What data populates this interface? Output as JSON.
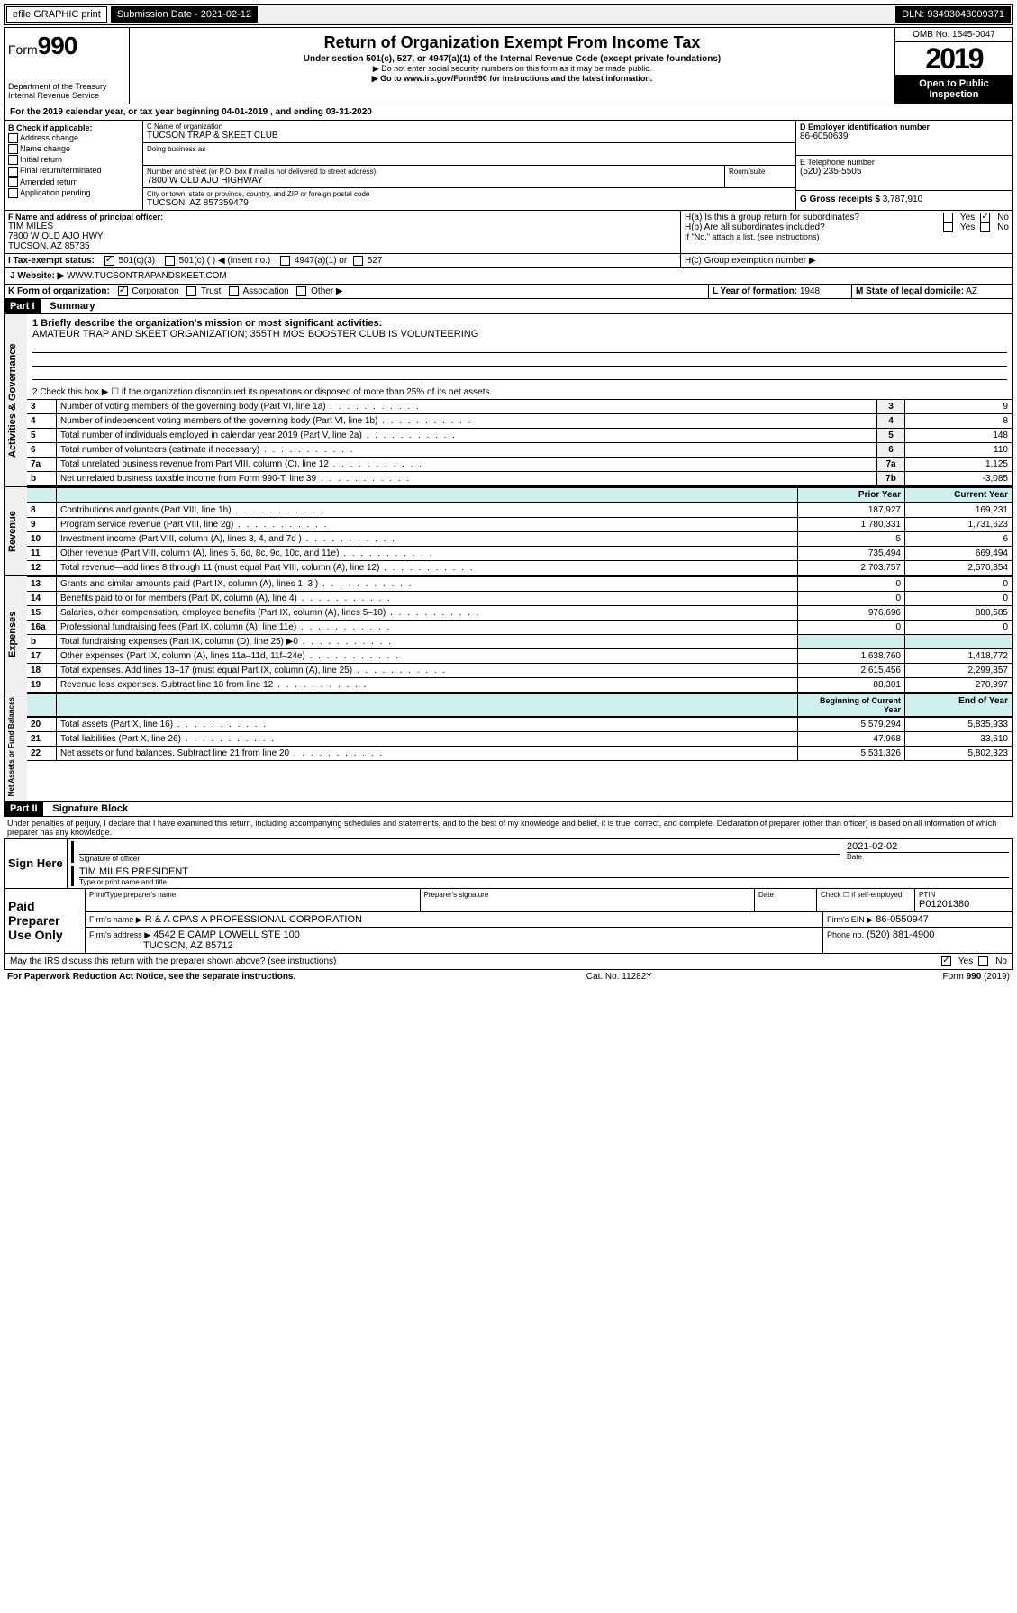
{
  "topbar": {
    "efile": "efile GRAPHIC print",
    "subdate_label": "Submission Date - 2021-02-12",
    "dln": "DLN: 93493043009371"
  },
  "header": {
    "form_prefix": "Form",
    "form_number": "990",
    "dept": "Department of the Treasury\nInternal Revenue Service",
    "title": "Return of Organization Exempt From Income Tax",
    "subtitle": "Under section 501(c), 527, or 4947(a)(1) of the Internal Revenue Code (except private foundations)",
    "warn": "▶ Do not enter social security numbers on this form as it may be made public.",
    "goto": "▶ Go to www.irs.gov/Form990 for instructions and the latest information.",
    "omb": "OMB No. 1545-0047",
    "year": "2019",
    "open": "Open to Public Inspection"
  },
  "lineA": "For the 2019 calendar year, or tax year beginning 04-01-2019  , and ending 03-31-2020",
  "boxB": {
    "label": "B Check if applicable:",
    "items": [
      "Address change",
      "Name change",
      "Initial return",
      "Final return/terminated",
      "Amended return",
      "Application pending"
    ]
  },
  "boxC": {
    "name_label": "C Name of organization",
    "name": "TUCSON TRAP & SKEET CLUB",
    "dba_label": "Doing business as",
    "addr_label": "Number and street (or P.O. box if mail is not delivered to street address)",
    "room_label": "Room/suite",
    "addr": "7800 W OLD AJO HIGHWAY",
    "city_label": "City or town, state or province, country, and ZIP or foreign postal code",
    "city": "TUCSON, AZ  857359479"
  },
  "boxD": {
    "label": "D Employer identification number",
    "val": "86-6050639"
  },
  "boxE": {
    "label": "E Telephone number",
    "val": "(520) 235-5505"
  },
  "boxG": {
    "label": "G Gross receipts $",
    "val": "3,787,910"
  },
  "boxF": {
    "label": "F Name and address of principal officer:",
    "name": "TIM MILES",
    "addr1": "7800 W OLD AJO HWY",
    "addr2": "TUCSON, AZ  85735"
  },
  "boxH": {
    "ha": "H(a)  Is this a group return for subordinates?",
    "hb": "H(b)  Are all subordinates included?",
    "hb_note": "If \"No,\" attach a list. (see instructions)",
    "hc": "H(c)  Group exemption number ▶"
  },
  "boxI": {
    "label": "I  Tax-exempt status:",
    "opts": [
      "501(c)(3)",
      "501(c) (  ) ◀ (insert no.)",
      "4947(a)(1) or",
      "527"
    ]
  },
  "boxJ": {
    "label": "J  Website: ▶",
    "val": "WWW.TUCSONTRAPANDSKEET.COM"
  },
  "boxK": {
    "label": "K Form of organization:",
    "opts": [
      "Corporation",
      "Trust",
      "Association",
      "Other ▶"
    ]
  },
  "boxL": {
    "label": "L Year of formation:",
    "val": "1948"
  },
  "boxM": {
    "label": "M State of legal domicile:",
    "val": "AZ"
  },
  "part1": {
    "header": "Part I",
    "title": "Summary",
    "l1_label": "1  Briefly describe the organization's mission or most significant activities:",
    "l1_text": "AMATEUR TRAP AND SKEET ORGANIZATION; 355TH MOS BOOSTER CLUB IS VOLUNTEERING",
    "l2": "2  Check this box ▶ ☐  if the organization discontinued its operations or disposed of more than 25% of its net assets.",
    "rows_ag": [
      {
        "n": "3",
        "t": "Number of voting members of the governing body (Part VI, line 1a)",
        "box": "3",
        "v": "9"
      },
      {
        "n": "4",
        "t": "Number of independent voting members of the governing body (Part VI, line 1b)",
        "box": "4",
        "v": "8"
      },
      {
        "n": "5",
        "t": "Total number of individuals employed in calendar year 2019 (Part V, line 2a)",
        "box": "5",
        "v": "148"
      },
      {
        "n": "6",
        "t": "Total number of volunteers (estimate if necessary)",
        "box": "6",
        "v": "110"
      },
      {
        "n": "7a",
        "t": "Total unrelated business revenue from Part VIII, column (C), line 12",
        "box": "7a",
        "v": "1,125"
      },
      {
        "n": "b",
        "t": "Net unrelated business taxable income from Form 990-T, line 39",
        "box": "7b",
        "v": "-3,085"
      }
    ],
    "col_prior": "Prior Year",
    "col_curr": "Current Year",
    "rev_rows": [
      {
        "n": "8",
        "t": "Contributions and grants (Part VIII, line 1h)",
        "p": "187,927",
        "c": "169,231"
      },
      {
        "n": "9",
        "t": "Program service revenue (Part VIII, line 2g)",
        "p": "1,780,331",
        "c": "1,731,623"
      },
      {
        "n": "10",
        "t": "Investment income (Part VIII, column (A), lines 3, 4, and 7d )",
        "p": "5",
        "c": "6"
      },
      {
        "n": "11",
        "t": "Other revenue (Part VIII, column (A), lines 5, 6d, 8c, 9c, 10c, and 11e)",
        "p": "735,494",
        "c": "669,494"
      },
      {
        "n": "12",
        "t": "Total revenue—add lines 8 through 11 (must equal Part VIII, column (A), line 12)",
        "p": "2,703,757",
        "c": "2,570,354"
      }
    ],
    "exp_rows": [
      {
        "n": "13",
        "t": "Grants and similar amounts paid (Part IX, column (A), lines 1–3 )",
        "p": "0",
        "c": "0"
      },
      {
        "n": "14",
        "t": "Benefits paid to or for members (Part IX, column (A), line 4)",
        "p": "0",
        "c": "0"
      },
      {
        "n": "15",
        "t": "Salaries, other compensation, employee benefits (Part IX, column (A), lines 5–10)",
        "p": "976,696",
        "c": "880,585"
      },
      {
        "n": "16a",
        "t": "Professional fundraising fees (Part IX, column (A), line 11e)",
        "p": "0",
        "c": "0"
      },
      {
        "n": "b",
        "t": "Total fundraising expenses (Part IX, column (D), line 25) ▶0",
        "p": "",
        "c": ""
      },
      {
        "n": "17",
        "t": "Other expenses (Part IX, column (A), lines 11a–11d, 11f–24e)",
        "p": "1,638,760",
        "c": "1,418,772"
      },
      {
        "n": "18",
        "t": "Total expenses. Add lines 13–17 (must equal Part IX, column (A), line 25)",
        "p": "2,615,456",
        "c": "2,299,357"
      },
      {
        "n": "19",
        "t": "Revenue less expenses. Subtract line 18 from line 12",
        "p": "88,301",
        "c": "270,997"
      }
    ],
    "col_boy": "Beginning of Current Year",
    "col_eoy": "End of Year",
    "na_rows": [
      {
        "n": "20",
        "t": "Total assets (Part X, line 16)",
        "p": "5,579,294",
        "c": "5,835,933"
      },
      {
        "n": "21",
        "t": "Total liabilities (Part X, line 26)",
        "p": "47,968",
        "c": "33,610"
      },
      {
        "n": "22",
        "t": "Net assets or fund balances. Subtract line 21 from line 20",
        "p": "5,531,326",
        "c": "5,802,323"
      }
    ],
    "side_ag": "Activities & Governance",
    "side_rev": "Revenue",
    "side_exp": "Expenses",
    "side_na": "Net Assets or Fund Balances"
  },
  "part2": {
    "header": "Part II",
    "title": "Signature Block",
    "decl": "Under penalties of perjury, I declare that I have examined this return, including accompanying schedules and statements, and to the best of my knowledge and belief, it is true, correct, and complete. Declaration of preparer (other than officer) is based on all information of which preparer has any knowledge.",
    "sign_here": "Sign Here",
    "sig_officer": "Signature of officer",
    "date_val": "2021-02-02",
    "date_lbl": "Date",
    "typed_name": "TIM MILES PRESIDENT",
    "typed_lbl": "Type or print name and title",
    "paid": "Paid Preparer Use Only",
    "prep_name_lbl": "Print/Type preparer's name",
    "prep_sig_lbl": "Preparer's signature",
    "prep_date_lbl": "Date",
    "self_emp": "Check ☐ if self-employed",
    "ptin_lbl": "PTIN",
    "ptin": "P01201380",
    "firm_name_lbl": "Firm's name  ▶",
    "firm_name": "R & A CPAS A PROFESSIONAL CORPORATION",
    "firm_ein_lbl": "Firm's EIN ▶",
    "firm_ein": "86-0550947",
    "firm_addr_lbl": "Firm's address ▶",
    "firm_addr1": "4542 E CAMP LOWELL STE 100",
    "firm_addr2": "TUCSON, AZ  85712",
    "phone_lbl": "Phone no.",
    "phone": "(520) 881-4900",
    "discuss": "May the IRS discuss this return with the preparer shown above? (see instructions)"
  },
  "footer": {
    "pra": "For Paperwork Reduction Act Notice, see the separate instructions.",
    "cat": "Cat. No. 11282Y",
    "form": "Form 990 (2019)"
  }
}
